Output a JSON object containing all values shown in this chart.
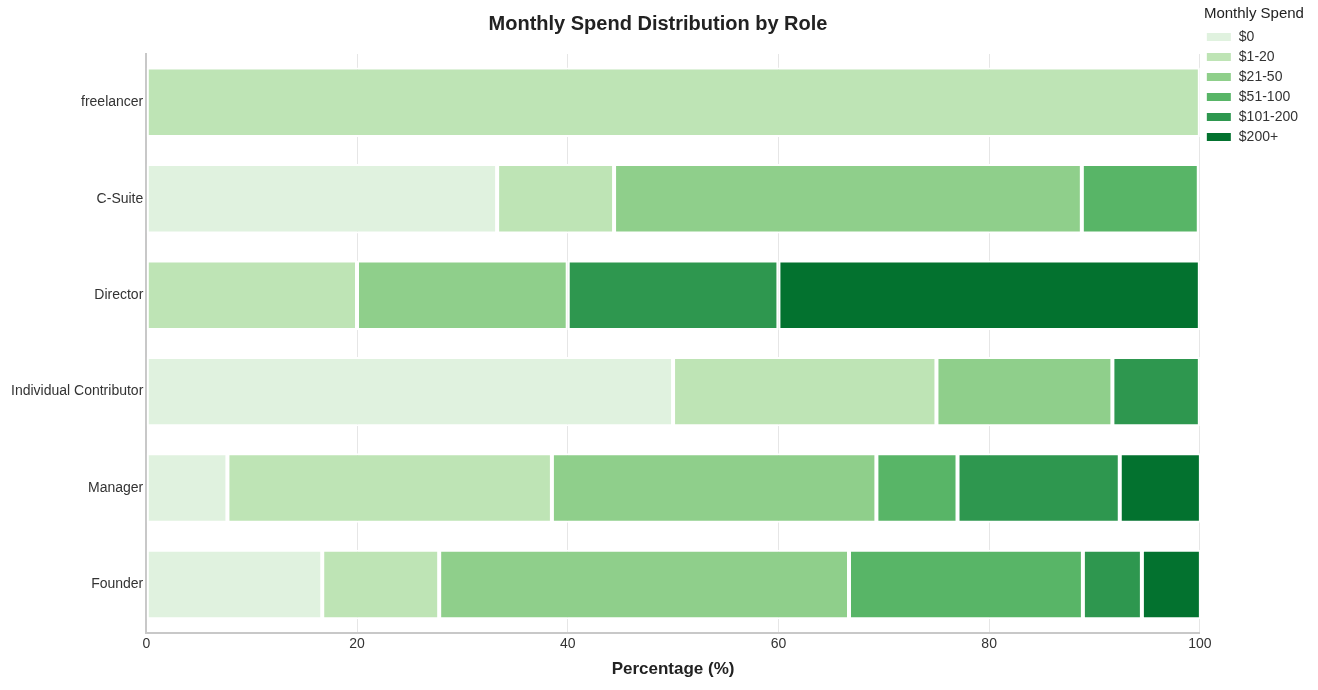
{
  "chart_data": {
    "type": "bar",
    "orientation": "horizontal",
    "stacked": true,
    "title": "Monthly Spend Distribution by Role",
    "xlabel": "Percentage (%)",
    "legend_title": "Monthly Spend",
    "legend": "top right",
    "grid": "x",
    "categories": [
      "freelancer",
      "C-Suite",
      "Director",
      "Individual Contributor",
      "Manager",
      "Founder"
    ],
    "xlim": [
      0,
      100
    ],
    "xticks": [
      0,
      20,
      40,
      60,
      80,
      100
    ],
    "series": [
      {
        "name": "$0",
        "color": "#e0f2df",
        "values": [
          0,
          33.3,
          0,
          50,
          7.7,
          16.7
        ]
      },
      {
        "name": "$1-20",
        "color": "#bee4b5",
        "values": [
          100,
          11.1,
          20,
          25,
          30.8,
          11.1
        ]
      },
      {
        "name": "$21-50",
        "color": "#8fcf8b",
        "values": [
          0,
          44.4,
          20,
          16.7,
          30.8,
          38.9
        ]
      },
      {
        "name": "$51-100",
        "color": "#58b567",
        "values": [
          0,
          11.1,
          0,
          0,
          7.7,
          22.2
        ]
      },
      {
        "name": "$101-200",
        "color": "#2e974f",
        "values": [
          0,
          0,
          20,
          8.3,
          15.4,
          5.6
        ]
      },
      {
        "name": "$200+",
        "color": "#03722f",
        "values": [
          0,
          0,
          40,
          0,
          7.7,
          5.6
        ]
      }
    ]
  }
}
